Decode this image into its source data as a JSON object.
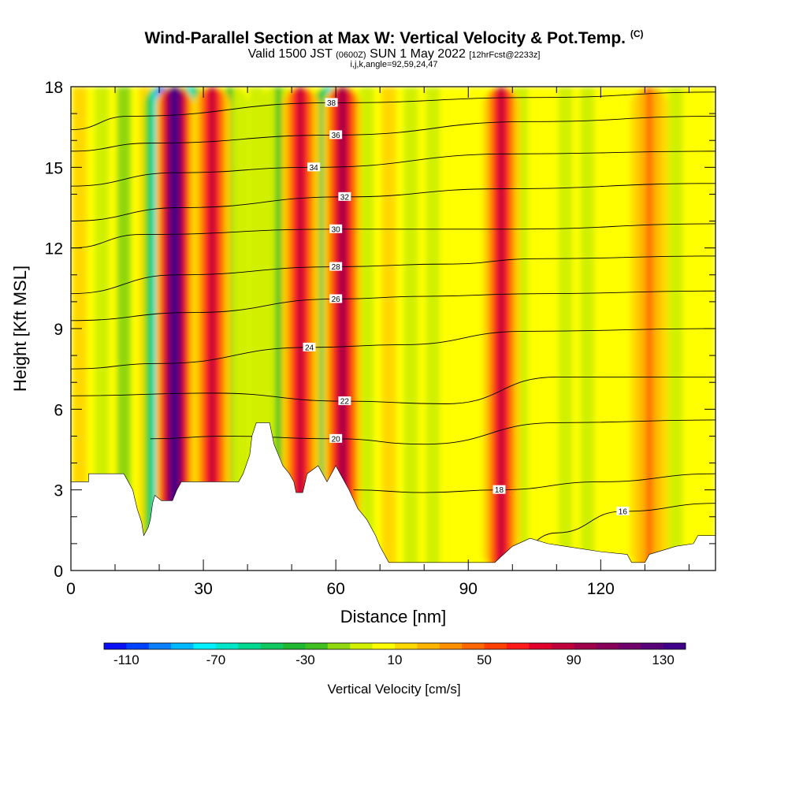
{
  "title": {
    "main": "Wind-Parallel Section at Max W: Vertical Velocity & Pot.Temp.",
    "main_suffix": "(C)",
    "valid_prefix": "Valid 1500 JST",
    "valid_z": "(0600Z)",
    "valid_date": "SUN 1 May 2022",
    "forecast": "[12hrFcst@2233z]",
    "indices": "i,j,k,angle=92,59,24,47"
  },
  "chart_data": {
    "type": "heatmap",
    "xlabel": "Distance [nm]",
    "ylabel": "Height [Kft MSL]",
    "xlim": [
      0,
      146
    ],
    "ylim": [
      0,
      18
    ],
    "x_ticks": [
      "0",
      "30",
      "60",
      "90",
      "120"
    ],
    "y_ticks": [
      "0",
      "3",
      "6",
      "9",
      "12",
      "15",
      "18"
    ],
    "colorbar": {
      "label": "Vertical Velocity [cm/s]",
      "min": -120,
      "max": 140,
      "step": 10,
      "tick_labels": [
        "-110",
        "-70",
        "-30",
        "10",
        "50",
        "90",
        "130"
      ],
      "colors": [
        "#0a0ff5",
        "#0040ff",
        "#0a7fff",
        "#00b8ff",
        "#00f0ff",
        "#00e6c8",
        "#00d890",
        "#10c860",
        "#20b830",
        "#40c020",
        "#90d810",
        "#d0f000",
        "#ffff00",
        "#ffd800",
        "#ffb400",
        "#ff9000",
        "#ff6800",
        "#ff4000",
        "#ff1a1a",
        "#e0002a",
        "#c0003a",
        "#a0004a",
        "#88005a",
        "#70006a",
        "#58007a",
        "#40008a"
      ]
    },
    "updrafts": [
      {
        "x": 23.5,
        "w": 130
      },
      {
        "x": 32,
        "w": 85
      },
      {
        "x": 52,
        "w": 80
      },
      {
        "x": 61.5,
        "w": 95
      },
      {
        "x": 97.5,
        "w": 85
      },
      {
        "x": 131,
        "w": 45
      }
    ],
    "downdrafts": [
      {
        "x": 20.5,
        "w": -110
      },
      {
        "x": 27,
        "w": -70
      },
      {
        "x": 58.5,
        "w": -70
      },
      {
        "x": 36,
        "w": -30
      },
      {
        "x": 47,
        "w": -25
      }
    ],
    "theta_contours": [
      {
        "label": "16",
        "points": [
          [
            98,
            0.3
          ],
          [
            110,
            1.4
          ],
          [
            125,
            2.2
          ],
          [
            146,
            2.5
          ]
        ]
      },
      {
        "label": "18",
        "points": [
          [
            64,
            3.0
          ],
          [
            80,
            2.9
          ],
          [
            97,
            3.0
          ],
          [
            120,
            3.3
          ],
          [
            146,
            3.6
          ]
        ]
      },
      {
        "label": "20",
        "points": [
          [
            18,
            4.9
          ],
          [
            35,
            5.0
          ],
          [
            60,
            4.9
          ],
          [
            80,
            4.7
          ],
          [
            110,
            5.5
          ],
          [
            146,
            5.6
          ]
        ]
      },
      {
        "label": "22",
        "points": [
          [
            0,
            6.5
          ],
          [
            32,
            6.6
          ],
          [
            62,
            6.3
          ],
          [
            85,
            6.2
          ],
          [
            110,
            7.2
          ],
          [
            146,
            7.2
          ]
        ]
      },
      {
        "label": "24",
        "points": [
          [
            0,
            7.5
          ],
          [
            20,
            7.7
          ],
          [
            54,
            8.3
          ],
          [
            75,
            8.4
          ],
          [
            103,
            8.9
          ],
          [
            146,
            9.0
          ]
        ]
      },
      {
        "label": "26",
        "points": [
          [
            0,
            9.3
          ],
          [
            28,
            9.6
          ],
          [
            60,
            10.1
          ],
          [
            80,
            10.2
          ],
          [
            106,
            10.3
          ],
          [
            146,
            10.4
          ]
        ]
      },
      {
        "label": "28",
        "points": [
          [
            0,
            10.3
          ],
          [
            24,
            11.0
          ],
          [
            60,
            11.3
          ],
          [
            85,
            11.4
          ],
          [
            106,
            11.6
          ],
          [
            146,
            11.7
          ]
        ]
      },
      {
        "label": "30",
        "points": [
          [
            0,
            12.0
          ],
          [
            16,
            12.5
          ],
          [
            60,
            12.7
          ],
          [
            100,
            12.7
          ],
          [
            146,
            12.9
          ]
        ]
      },
      {
        "label": "32",
        "points": [
          [
            0,
            13.0
          ],
          [
            25,
            13.5
          ],
          [
            62,
            13.9
          ],
          [
            97,
            14.2
          ],
          [
            146,
            14.4
          ]
        ]
      },
      {
        "label": "34",
        "points": [
          [
            0,
            14.3
          ],
          [
            24,
            14.8
          ],
          [
            55,
            15.0
          ],
          [
            100,
            15.5
          ],
          [
            146,
            15.6
          ]
        ]
      },
      {
        "label": "36",
        "points": [
          [
            0,
            15.6
          ],
          [
            18,
            15.9
          ],
          [
            60,
            16.2
          ],
          [
            104,
            16.7
          ],
          [
            146,
            16.9
          ]
        ]
      },
      {
        "label": "38",
        "points": [
          [
            0,
            16.4
          ],
          [
            13,
            16.9
          ],
          [
            59,
            17.4
          ],
          [
            107,
            17.6
          ],
          [
            146,
            17.8
          ]
        ]
      }
    ],
    "terrain": [
      [
        0,
        3.3
      ],
      [
        4,
        3.3
      ],
      [
        4,
        3.6
      ],
      [
        12,
        3.6
      ],
      [
        13,
        3.3
      ],
      [
        14,
        3.0
      ],
      [
        15,
        2.3
      ],
      [
        16,
        1.8
      ],
      [
        16.5,
        1.3
      ],
      [
        17.5,
        1.6
      ],
      [
        18,
        1.9
      ],
      [
        18.5,
        2.5
      ],
      [
        19,
        2.8
      ],
      [
        20.5,
        2.6
      ],
      [
        22,
        2.6
      ],
      [
        23,
        2.6
      ],
      [
        24,
        3.0
      ],
      [
        25,
        3.3
      ],
      [
        28,
        3.3
      ],
      [
        34,
        3.3
      ],
      [
        38,
        3.3
      ],
      [
        39,
        3.6
      ],
      [
        40.5,
        4.3
      ],
      [
        41,
        5.0
      ],
      [
        42,
        5.5
      ],
      [
        45,
        5.5
      ],
      [
        46,
        4.7
      ],
      [
        47,
        4.3
      ],
      [
        48,
        3.9
      ],
      [
        49.5,
        3.6
      ],
      [
        50.5,
        3.3
      ],
      [
        51,
        2.9
      ],
      [
        52.5,
        2.9
      ],
      [
        53.5,
        3.6
      ],
      [
        56,
        3.9
      ],
      [
        57,
        3.6
      ],
      [
        58,
        3.3
      ],
      [
        59,
        3.6
      ],
      [
        60,
        3.9
      ],
      [
        61,
        3.6
      ],
      [
        62,
        3.3
      ],
      [
        63,
        3.0
      ],
      [
        65,
        2.3
      ],
      [
        67,
        1.9
      ],
      [
        69,
        1.3
      ],
      [
        70,
        0.9
      ],
      [
        72,
        0.3
      ],
      [
        96,
        0.3
      ],
      [
        98,
        0.6
      ],
      [
        100,
        0.9
      ],
      [
        104,
        1.2
      ],
      [
        108,
        1.0
      ],
      [
        112,
        0.9
      ],
      [
        120,
        0.7
      ],
      [
        126,
        0.6
      ],
      [
        127,
        0.3
      ],
      [
        130,
        0.3
      ],
      [
        131,
        0.6
      ],
      [
        137,
        0.9
      ],
      [
        141,
        1.0
      ],
      [
        142,
        1.3
      ],
      [
        146,
        1.3
      ]
    ]
  }
}
